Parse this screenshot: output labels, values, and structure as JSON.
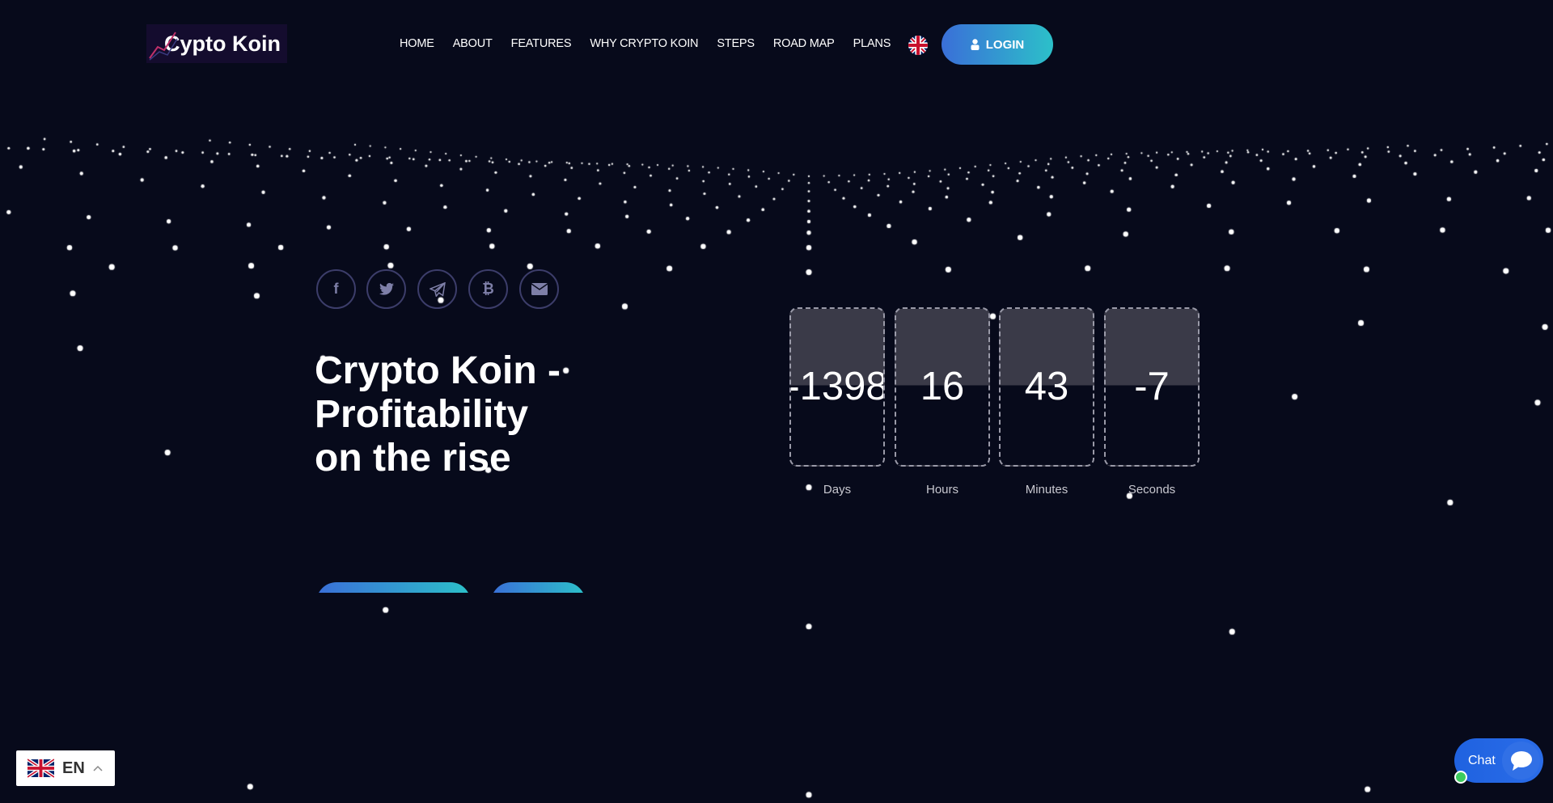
{
  "header": {
    "logo_text": "Cypto Koin",
    "nav": [
      "HOME",
      "ABOUT",
      "FEATURES",
      "WHY CRYPTO KOIN",
      "STEPS",
      "ROAD MAP",
      "PLANS"
    ],
    "language_flag": "uk-flag-icon",
    "login_label": "LOGIN",
    "login_icon": "user-icon"
  },
  "social": [
    "facebook-icon",
    "twitter-icon",
    "telegram-icon",
    "bitcoin-icon",
    "email-icon"
  ],
  "hero": {
    "headline": "Crypto Koin - Profitability on the rise"
  },
  "countdown": [
    {
      "value": "-1398",
      "label": "Days"
    },
    {
      "value": "16",
      "label": "Hours"
    },
    {
      "value": "43",
      "label": "Minutes"
    },
    {
      "value": "-7",
      "label": "Seconds"
    }
  ],
  "language_switcher": {
    "code": "EN"
  },
  "chat": {
    "label": "Chat"
  },
  "colors": {
    "background": "#070a1b",
    "accent_start": "#3a6fd8",
    "accent_end": "#2cc0c9"
  }
}
